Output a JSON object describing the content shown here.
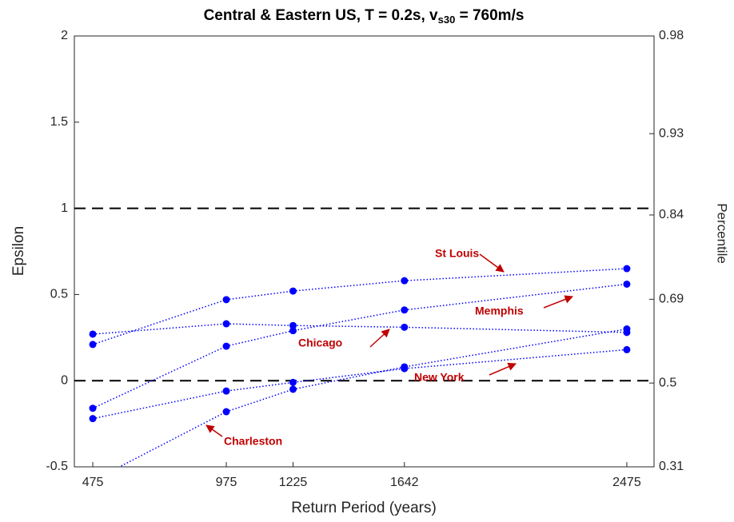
{
  "chart_data": {
    "type": "line",
    "title": [
      "Central & Eastern US, T = 0.2s, v",
      "s30",
      " = 760m/s"
    ],
    "x_label": "Return Period (years)",
    "y_label": "Epsilon",
    "y2_label": "Percentile",
    "x": [
      475,
      975,
      1225,
      1642,
      2475
    ],
    "xlim": [
      406,
      2577
    ],
    "xticks": [
      475,
      975,
      1225,
      1642,
      2475
    ],
    "ylim": [
      -0.5,
      2
    ],
    "yticks": [
      -0.5,
      0,
      0.5,
      1,
      1.5,
      2
    ],
    "y2lim": [
      0.31,
      0.98
    ],
    "y2ticks": [
      0.31,
      0.5,
      0.69,
      0.84,
      0.93,
      0.98
    ],
    "y2scale": "probit",
    "hlines": [
      0,
      1
    ],
    "series": [
      {
        "name": "St Louis",
        "color": "#0000ff",
        "values": [
          0.21,
          0.47,
          0.52,
          0.58,
          0.65
        ]
      },
      {
        "name": "Memphis",
        "color": "#0000ff",
        "values": [
          -0.16,
          0.2,
          0.29,
          0.41,
          0.56
        ]
      },
      {
        "name": "Chicago",
        "color": "#0000ff",
        "values": [
          0.27,
          0.33,
          0.32,
          0.31,
          0.28
        ]
      },
      {
        "name": "New York",
        "color": "#0000ff",
        "values": [
          -0.22,
          -0.06,
          -0.01,
          0.07,
          0.18
        ]
      },
      {
        "name": "Charleston",
        "color": "#0000ff",
        "values": [
          -0.58,
          -0.18,
          -0.05,
          0.08,
          0.3
        ]
      }
    ],
    "annotation_color": "#c00000"
  }
}
